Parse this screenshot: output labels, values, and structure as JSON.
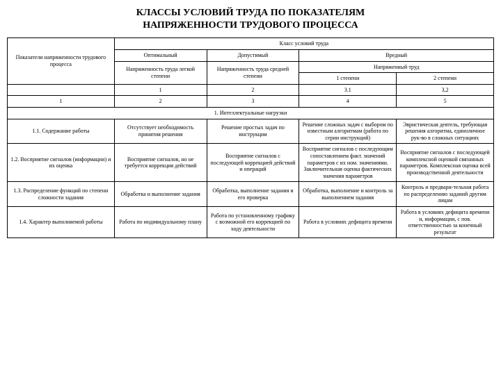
{
  "title_line1": "КЛАССЫ УСЛОВИЙ ТРУДА ПО ПОКАЗАТЕЛЯМ",
  "title_line2": "НАПРЯЖЕННОСТИ ТРУДОВОГО ПРОЦЕССА",
  "header": {
    "class_label": "Класс условий труда",
    "row_header": "Показатели напряженности трудового процесса",
    "optimal": "Оптимальный",
    "acceptable": "Допустимый",
    "harmful": "Вредный",
    "tension_light": "Напряженность труда легкой степени",
    "tension_medium": "Напряженность труда средней степени",
    "tension_hard": "Напряженный труд",
    "degree1": "1 степени",
    "degree2": "2 степени",
    "num1": "1",
    "num2": "2",
    "num31": "3.1",
    "num32": "3,2",
    "idx1": "1",
    "idx2": "2",
    "idx3": "3",
    "idx4": "4",
    "idx5": "5"
  },
  "section1": "1. Интеллектуальные нагрузки",
  "rows": [
    {
      "label": "1.1. Содержание работы",
      "c1": "Отсутствует необходимость принятия решения",
      "c2": "Решение простых задач по инструкции",
      "c3": "Решение сложных задач с выбором по известным алгоритмам (работа по серии инструкций)",
      "c4": "Эвристическая деятель, требующая решения алгоритма, единоличное рук-во в сложных ситуациях"
    },
    {
      "label": "1.2. Восприятие сигналов (информации) и их оценка",
      "c1": "Восприятие сигналов, но не требуется коррекция действий",
      "c2": "Восприятие сигналов с последующей коррекцией действий и операций",
      "c3": "Восприятие сигналов с последующим сопоставлением факт. значений параметров с их ном. значениями. Заключительная оценка фактических значения параметров",
      "c4": "Восприятие сигналов с последующей комплексной оценкой связанных параметров. Комплексная оценка всей производственной деятельности"
    },
    {
      "label": "1.3. Распределение функций по степени сложности задания",
      "c1": "Обработка и выполнение задания",
      "c2": "Обработка, выполнение задания и его проверка",
      "c3": "Обработка, выполнение и контроль за выполнением задания",
      "c4": "Контроль и предвари-тельная работа по распределению заданий другим лицам"
    },
    {
      "label": "1.4. Характер выполняемой работы",
      "c1": "Работа по индивидуальному плану",
      "c2": "Работа по установленному графику с возможной его коррекцией по ходу деятельности",
      "c3": "Работа в условиях дефицита времени",
      "c4": "Работа в условиях дефицита времени и, информации, с пов. ответственностью за конечный результат"
    }
  ]
}
